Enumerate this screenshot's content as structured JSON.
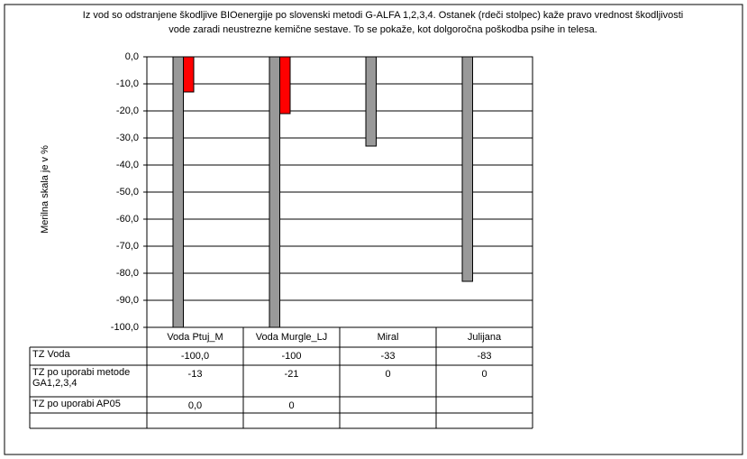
{
  "chart_data": {
    "type": "bar",
    "title": "Iz vod so odstranjene škodljive BIOenergije po slovenski metodi G-ALFA 1,2,3,4. Ostanek (rdeči stolpec)  kaže pravo vrednost škodljivosti vode zaradi neustrezne kemične sestave. To se pokaže, kot dolgoročna poškodba psihe in telesa.",
    "y_label": "Merilna skala je v %",
    "categories": [
      "Voda Ptuj_M",
      "Voda Murgle_LJ",
      "Miral",
      "Julijana"
    ],
    "series": [
      {
        "name": "TZ Voda",
        "color": "#999999",
        "values": [
          -100,
          -100,
          -33,
          -83
        ],
        "value_labels": [
          "-100,0",
          "-100",
          "-33",
          "-83"
        ]
      },
      {
        "name": "TZ po uporabi metode GA1,2,3,4",
        "color": "#ff0000",
        "values": [
          -13,
          -21,
          0,
          0
        ],
        "value_labels": [
          "-13",
          "-21",
          "0",
          "0"
        ]
      },
      {
        "name": "TZ po uporabi AP05",
        "values": [
          0,
          0,
          null,
          null
        ],
        "value_labels": [
          "0,0",
          "0",
          null,
          null
        ]
      }
    ],
    "ylim": [
      -100,
      0
    ],
    "yticks": [
      {
        "value": 0,
        "label": "0,0"
      },
      {
        "value": -10,
        "label": "-10,0"
      },
      {
        "value": -20,
        "label": "-20,0"
      },
      {
        "value": -30,
        "label": "-30,0"
      },
      {
        "value": -40,
        "label": "-40,0"
      },
      {
        "value": -50,
        "label": "-50,0"
      },
      {
        "value": -60,
        "label": "-60,0"
      },
      {
        "value": -70,
        "label": "-70,0"
      },
      {
        "value": -80,
        "label": "-80,0"
      },
      {
        "value": -90,
        "label": "-90,0"
      },
      {
        "value": -100,
        "label": "-100,0"
      }
    ],
    "grid": true
  }
}
